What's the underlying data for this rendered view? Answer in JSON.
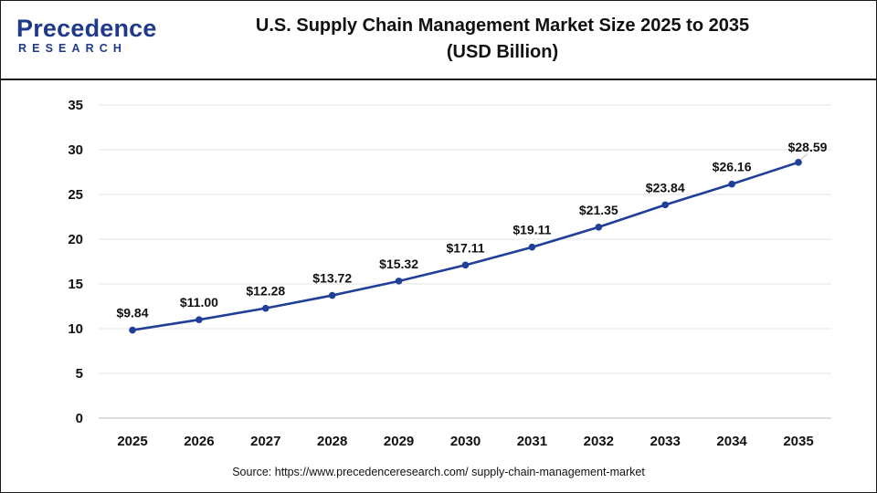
{
  "header": {
    "logo_text": "Precedence",
    "logo_sub": "RESEARCH",
    "title_line1": "U.S. Supply Chain Management Market Size 2025 to 2035",
    "title_line2": "(USD Billion)"
  },
  "colors": {
    "line": "#1f3f98",
    "marker": "#1f3f98",
    "grid": "#e3e3e3",
    "logo": "#1f3a8a"
  },
  "chart_data": {
    "type": "line",
    "title": "U.S. Supply Chain Management Market Size 2025 to 2035 (USD Billion)",
    "xlabel": "",
    "ylabel": "",
    "ylim": [
      0,
      35
    ],
    "yticks": [
      0,
      5,
      10,
      15,
      20,
      25,
      30,
      35
    ],
    "grid": "horizontal",
    "legend": "none",
    "categories": [
      "2025",
      "2026",
      "2027",
      "2028",
      "2029",
      "2030",
      "2031",
      "2032",
      "2033",
      "2034",
      "2035"
    ],
    "series": [
      {
        "values": [
          9.84,
          11.0,
          12.28,
          13.72,
          15.32,
          17.11,
          19.11,
          21.35,
          23.84,
          26.16,
          28.59
        ],
        "labels": [
          "$9.84",
          "$11.00",
          "$12.28",
          "$13.72",
          "$15.32",
          "$17.11",
          "$19.11",
          "$21.35",
          "$23.84",
          "$26.16",
          "$28.59"
        ]
      }
    ]
  },
  "footer": {
    "source": "Source: https://www.precedenceresearch.com/ supply-chain-management-market"
  }
}
